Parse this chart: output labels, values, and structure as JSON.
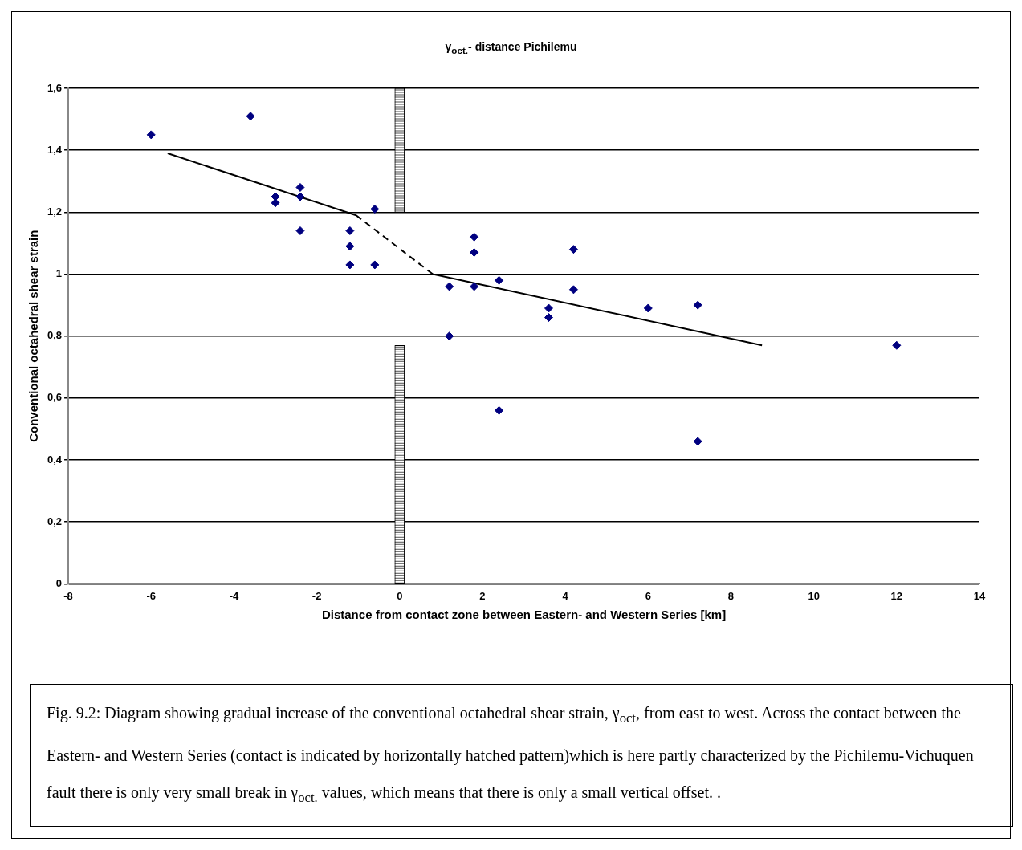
{
  "chart_data": {
    "type": "scatter",
    "title": "γ$_{oct.}$- distance Pichilemu",
    "xlabel": "Distance from contact zone between Eastern- and Western Series [km]",
    "ylabel": "Conventional octahedral shear strain",
    "xlim": [
      -8,
      14
    ],
    "xticks": [
      -8,
      -6,
      -4,
      -2,
      0,
      2,
      4,
      6,
      8,
      10,
      12,
      14
    ],
    "ylim": [
      0,
      1.6
    ],
    "yticks": [
      {
        "value": 0,
        "label": "0"
      },
      {
        "value": 0.2,
        "label": "0,2"
      },
      {
        "value": 0.4,
        "label": "0,4"
      },
      {
        "value": 0.6,
        "label": "0,6"
      },
      {
        "value": 0.8,
        "label": "0,8"
      },
      {
        "value": 1,
        "label": "1"
      },
      {
        "value": 1.2,
        "label": "1,2"
      },
      {
        "value": 1.4,
        "label": "1,4"
      },
      {
        "value": 1.6,
        "label": "1,6"
      }
    ],
    "grid": "y",
    "legend": false,
    "marker": "diamond",
    "series": [
      {
        "type": "bar",
        "color": "#000000",
        "x": [
          0,
          0
        ],
        "base": [
          1.2,
          0
        ],
        "values": [
          0.4,
          0.77
        ]
      },
      {
        "color": "#000080",
        "x": [
          -6,
          -3.6,
          -3,
          -3,
          -2.4,
          -2.4,
          -2.4,
          -1.2,
          -1.2,
          -1.2,
          -0.6,
          -0.6,
          1.2,
          1.2,
          1.8,
          1.8,
          1.8,
          2.4,
          2.4,
          3.6,
          3.6,
          4.2,
          4.2,
          6,
          7.2,
          7.2,
          12
        ],
        "values": [
          1.45,
          1.51,
          1.25,
          1.23,
          1.28,
          1.25,
          1.14,
          1.14,
          1.09,
          1.03,
          1.21,
          1.03,
          0.96,
          0.8,
          1.12,
          1.07,
          0.96,
          0.98,
          0.56,
          0.89,
          0.86,
          1.08,
          0.95,
          0.89,
          0.9,
          0.46,
          0.77
        ]
      },
      {
        "type": "line",
        "color": "#000000",
        "marker": "none",
        "line_style": "solid",
        "x": [
          -5.6,
          -1.05
        ],
        "values": [
          1.39,
          1.19
        ]
      },
      {
        "type": "line",
        "color": "#000000",
        "marker": "none",
        "line_style": "dashed",
        "x": [
          -1.05,
          0.8
        ],
        "values": [
          1.19,
          1.0
        ]
      },
      {
        "type": "line",
        "color": "#000000",
        "marker": "none",
        "line_style": "solid",
        "x": [
          0.8,
          8.75
        ],
        "values": [
          1.0,
          0.77
        ]
      }
    ],
    "annotations": [
      "Fig. 9.2: Diagram showing gradual increase of the conventional octahedral shear strain, γ$_{oct}$, from east to west. Across the contact between the Eastern- and Western Series (contact is indicated by horizontally hatched pattern)which is here partly characterized by the Pichilemu-Vichuquen fault there is only very small break in γ$_{oct.}$ values, which means that there is only a small vertical offset. ."
    ]
  }
}
